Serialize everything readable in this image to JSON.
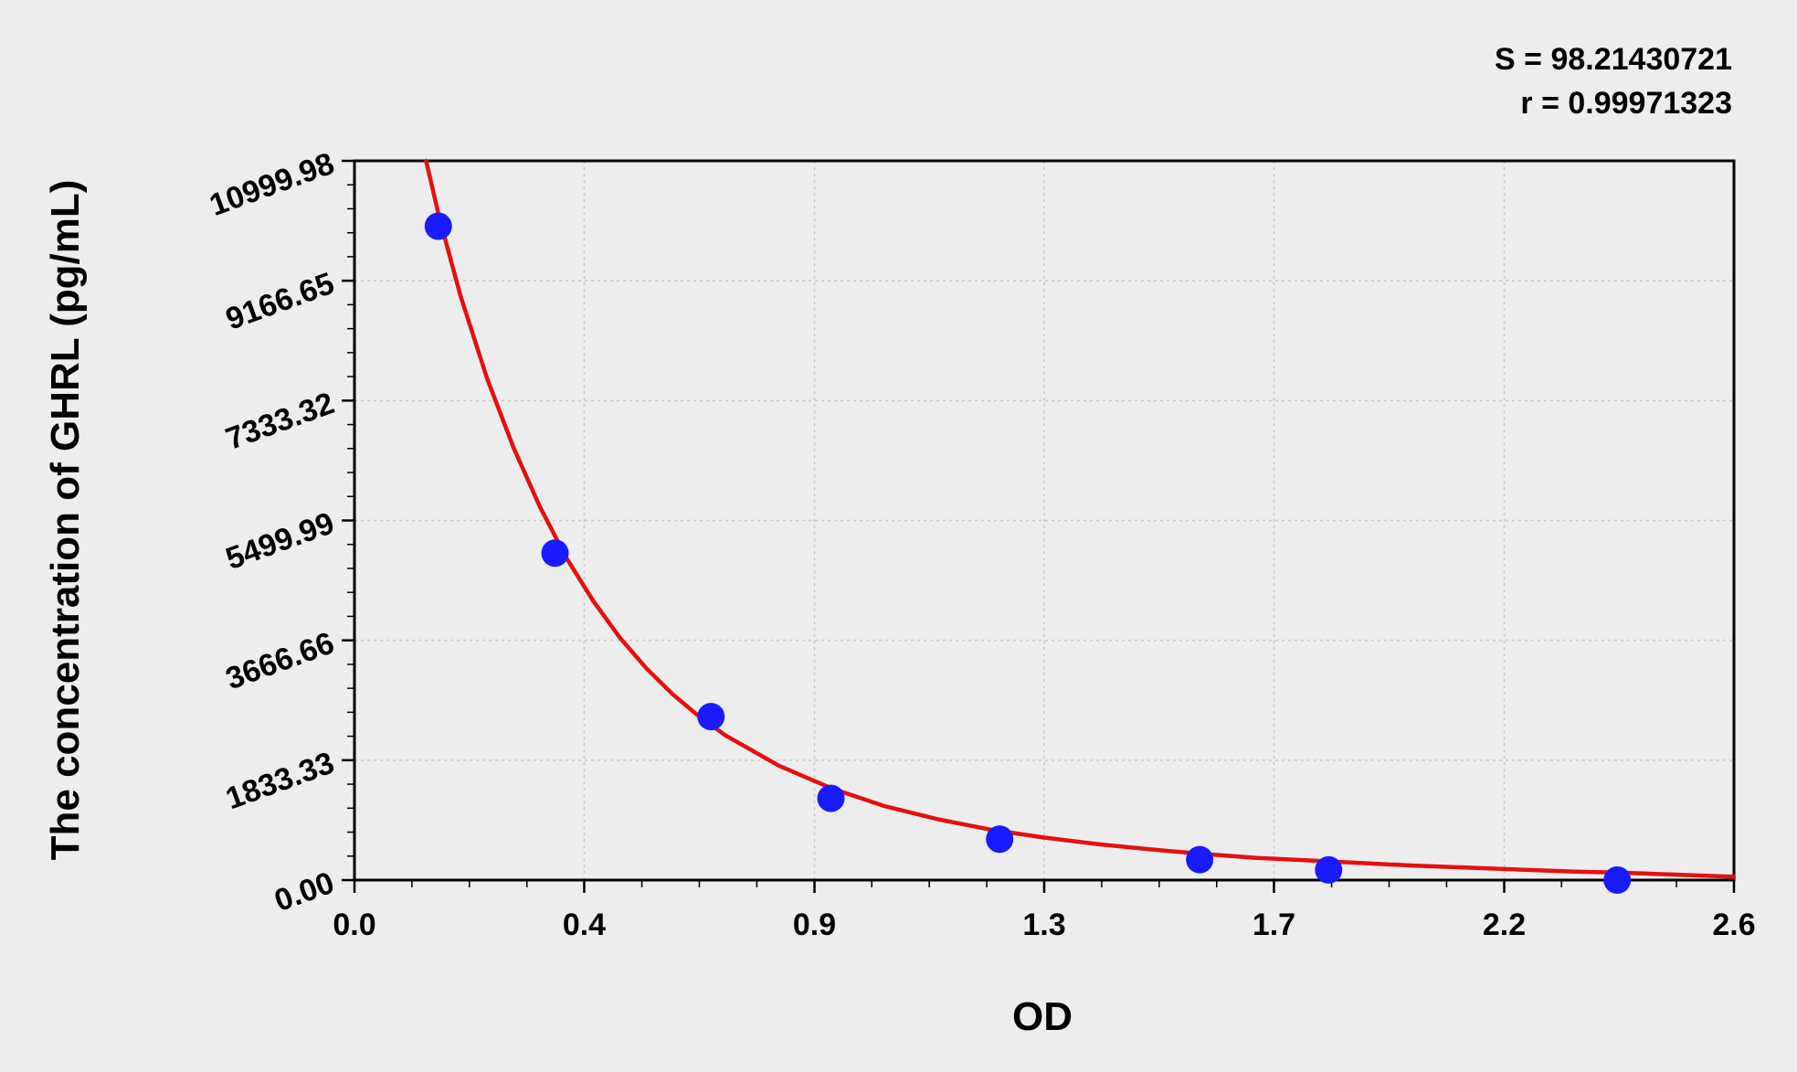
{
  "chart_data": {
    "type": "scatter",
    "title": "",
    "xlabel": "OD",
    "ylabel": "The concentration of GHRL (pg/mL)",
    "xlim": [
      0.0,
      2.6
    ],
    "ylim": [
      0.0,
      10999.98
    ],
    "x_ticks": [
      "0.0",
      "0.4",
      "0.9",
      "1.3",
      "1.7",
      "2.2",
      "2.6"
    ],
    "x_tick_values": [
      0.0,
      0.433,
      0.867,
      1.3,
      1.733,
      2.167,
      2.6
    ],
    "y_ticks": [
      "0.00",
      "1833.33",
      "3666.66",
      "5499.99",
      "7333.32",
      "9166.65",
      "10999.98"
    ],
    "y_tick_values": [
      0.0,
      1833.33,
      3666.66,
      5499.99,
      7333.32,
      9166.65,
      10999.98
    ],
    "grid": true,
    "series": [
      {
        "type": "scatter",
        "color": "#1a1aff",
        "x": [
          0.158,
          0.378,
          0.672,
          0.898,
          1.216,
          1.593,
          1.836,
          2.38
        ],
        "y": [
          10000,
          5000,
          2500,
          1250,
          625,
          312,
          156,
          0
        ]
      },
      {
        "type": "line",
        "color": "#e41010",
        "x": [
          0.135,
          0.16,
          0.2,
          0.25,
          0.3,
          0.35,
          0.4,
          0.45,
          0.5,
          0.55,
          0.6,
          0.65,
          0.7,
          0.8,
          0.9,
          1.0,
          1.1,
          1.2,
          1.3,
          1.4,
          1.5,
          1.6,
          1.7,
          1.8,
          1.9,
          2.0,
          2.1,
          2.2,
          2.3,
          2.4,
          2.5,
          2.6
        ],
        "y": [
          11000,
          10130,
          8930,
          7670,
          6610,
          5700,
          4920,
          4270,
          3710,
          3240,
          2840,
          2500,
          2210,
          1750,
          1400,
          1130,
          930,
          770,
          650,
          550,
          470,
          400,
          340,
          300,
          260,
          220,
          190,
          160,
          130,
          110,
          80,
          50
        ]
      }
    ],
    "annotations": [
      "S = 98.21430721",
      "r = 0.99971323"
    ]
  }
}
